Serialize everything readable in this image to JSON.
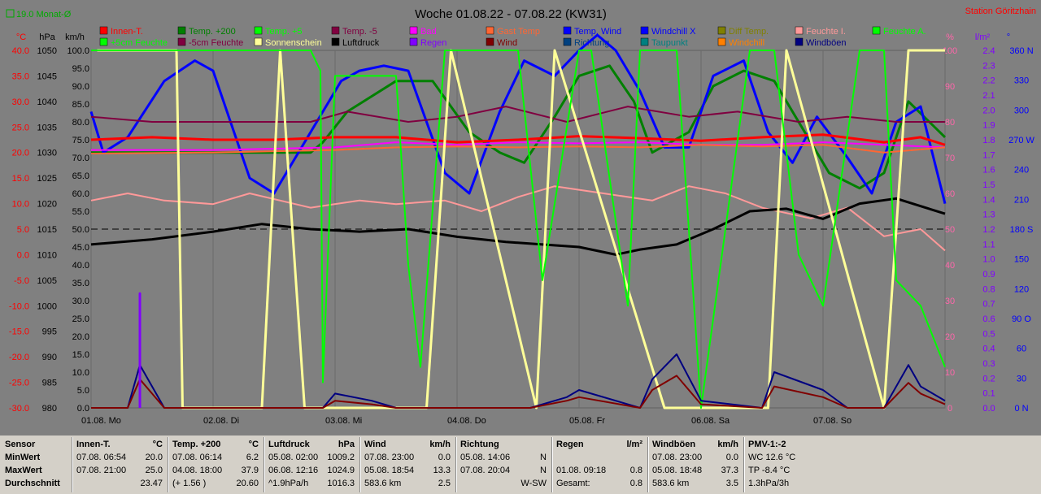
{
  "header": {
    "title": "Woche 01.08.22 - 07.08.22 (KW31)",
    "station": "Station Göritzhain",
    "month_avg": "19.0 Monat-Ø"
  },
  "units": {
    "temp": "°C",
    "hpa": "hPa",
    "kmh": "km/h",
    "pct": "%",
    "lm2": "l/m²",
    "deg": "°"
  },
  "legend": [
    {
      "label": "Innen-T.",
      "color": "#ff0000"
    },
    {
      "label": "Temp. +200",
      "color": "#008000"
    },
    {
      "label": "Temp. +5",
      "color": "#00ff00"
    },
    {
      "label": "Temp. -5",
      "color": "#800040"
    },
    {
      "label": "Bad",
      "color": "#ff00ff"
    },
    {
      "label": "Gast Temp",
      "color": "#ff6633"
    },
    {
      "label": "Temp. Wind",
      "color": "#0000ff"
    },
    {
      "label": "Windchill X",
      "color": "#0000ff"
    },
    {
      "label": "Diff Temp.",
      "color": "#808000"
    },
    {
      "label": "Feuchte I.",
      "color": "#ff9999"
    },
    {
      "label": "Feuchte A.",
      "color": "#00ff00"
    },
    {
      "label": "+5cm Feuchte",
      "color": "#00ff00"
    },
    {
      "label": "-5cm Feuchte",
      "color": "#800040"
    },
    {
      "label": "Sonnenschein",
      "color": "#ffff99"
    },
    {
      "label": "Luftdruck",
      "color": "#000000"
    },
    {
      "label": "Regen",
      "color": "#8000ff"
    },
    {
      "label": "Wind",
      "color": "#800000"
    },
    {
      "label": "Richtung",
      "color": "#004080"
    },
    {
      "label": "Taupunkt",
      "color": "#008080"
    },
    {
      "label": "Windchill",
      "color": "#ff8000"
    },
    {
      "label": "Windböen",
      "color": "#000080"
    }
  ],
  "chart_data": {
    "type": "line",
    "x_ticks": [
      "01.08. Mo",
      "02.08. Di",
      "03.08. Mi",
      "04.08. Do",
      "05.08. Fr",
      "06.08. Sa",
      "07.08. So"
    ],
    "axes": {
      "temp": {
        "ticks": [
          "40.0",
          "35.0",
          "30.0",
          "25.0",
          "20.0",
          "15.0",
          "10.0",
          "5.0",
          "0.0",
          "-5.0",
          "-10.0",
          "-15.0",
          "-20.0",
          "-25.0",
          "-30.0"
        ],
        "range": [
          -30,
          40
        ]
      },
      "pressure": {
        "ticks": [
          "1050",
          "1045",
          "1040",
          "1035",
          "1030",
          "1025",
          "1020",
          "1015",
          "1010",
          "1005",
          "1000",
          "995",
          "990",
          "985",
          "980"
        ],
        "range": [
          980,
          1050
        ]
      },
      "wind": {
        "ticks": [
          "100.0",
          "95.0",
          "90.0",
          "85.0",
          "80.0",
          "75.0",
          "70.0",
          "65.0",
          "60.0",
          "55.0",
          "50.0",
          "45.0",
          "40.0",
          "35.0",
          "30.0",
          "25.0",
          "20.0",
          "15.0",
          "10.0",
          "5.0",
          "0.0"
        ],
        "range": [
          0,
          100
        ]
      },
      "humidity": {
        "ticks": [
          "100",
          "90",
          "80",
          "70",
          "60",
          "50",
          "40",
          "30",
          "20",
          "10",
          "0"
        ],
        "range": [
          0,
          100
        ]
      },
      "rain": {
        "ticks": [
          "2.4",
          "2.3",
          "2.2",
          "2.1",
          "2.0",
          "1.9",
          "1.8",
          "1.7",
          "1.6",
          "1.5",
          "1.4",
          "1.3",
          "1.2",
          "1.1",
          "1.0",
          "0.9",
          "0.8",
          "0.7",
          "0.6",
          "0.5",
          "0.4",
          "0.3",
          "0.2",
          "0.1",
          "0.0"
        ],
        "range": [
          0,
          2.5
        ]
      },
      "direction": {
        "ticks": [
          "360 N",
          "330",
          "300",
          "270 W",
          "240",
          "210",
          "180 S",
          "150",
          "120",
          "90 O",
          "60",
          "30",
          "0 N"
        ],
        "range": [
          0,
          360
        ]
      }
    },
    "series": [
      {
        "name": "Temp. +200",
        "axis": "temp",
        "color": "#008000",
        "width": 3,
        "x": [
          0,
          0.4,
          1.8,
          1.9,
          2.1,
          2.5,
          2.8,
          3.1,
          3.35,
          3.55,
          3.8,
          4.0,
          4.25,
          4.45,
          4.6,
          4.9,
          5.1,
          5.35,
          5.6,
          5.85,
          6.05,
          6.3,
          6.5,
          6.7,
          7.0
        ],
        "y": [
          20,
          20,
          20,
          22,
          28,
          34,
          34,
          24,
          20,
          18,
          27,
          35,
          37,
          30,
          20,
          24,
          33,
          36,
          34,
          24,
          16,
          13,
          16,
          30,
          23
        ]
      },
      {
        "name": "Temp. Wind",
        "axis": "temp",
        "color": "#0000ff",
        "width": 3,
        "x": [
          0,
          0.1,
          0.3,
          0.6,
          0.85,
          1.0,
          1.3,
          1.5,
          1.9,
          2.05,
          2.2,
          2.4,
          2.6,
          2.9,
          3.1,
          3.35,
          3.55,
          3.8,
          4.0,
          4.15,
          4.3,
          4.5,
          4.7,
          4.9,
          5.1,
          5.35,
          5.55,
          5.75,
          5.95,
          6.2,
          6.4,
          6.6,
          6.8,
          7.0
        ],
        "y": [
          28,
          20,
          23,
          34,
          38,
          36,
          15,
          12,
          28,
          34,
          36,
          37,
          36,
          16,
          12,
          28,
          38,
          35,
          40,
          43,
          40,
          32,
          21,
          21,
          35,
          38,
          24,
          18,
          27,
          19,
          12,
          26,
          29,
          10
        ]
      },
      {
        "name": "Innen-T.",
        "axis": "temp",
        "color": "#ff0000",
        "width": 3,
        "x": [
          0,
          0.5,
          1.0,
          1.5,
          2.0,
          2.5,
          3.0,
          3.5,
          4.0,
          4.5,
          5.0,
          5.5,
          6.0,
          6.5,
          6.8,
          7.0
        ],
        "y": [
          22.5,
          23,
          22.5,
          22.5,
          23,
          23,
          22,
          22.5,
          23.2,
          22.8,
          22.3,
          23,
          23.5,
          22,
          23,
          21.5
        ]
      },
      {
        "name": "Bad",
        "axis": "temp",
        "color": "#ff00ff",
        "width": 2,
        "x": [
          0,
          1,
          2,
          2.5,
          3,
          3.5,
          4,
          4.5,
          5,
          5.5,
          6,
          6.5,
          7
        ],
        "y": [
          20.5,
          20.5,
          21,
          22,
          21.5,
          22,
          21.8,
          22,
          21.5,
          21.5,
          22,
          21.5,
          21
        ]
      },
      {
        "name": "Gast Temp",
        "axis": "temp",
        "color": "#ff6633",
        "width": 2,
        "x": [
          0,
          1,
          2,
          2.5,
          3,
          3.5,
          4,
          4.5,
          5,
          5.5,
          6,
          6.5,
          7
        ],
        "y": [
          19.8,
          20,
          20.5,
          21,
          21.2,
          21,
          21.2,
          21,
          21.5,
          21.2,
          21.5,
          20,
          21
        ]
      },
      {
        "name": "Temp. -5",
        "axis": "temp",
        "color": "#800040",
        "width": 2,
        "x": [
          0,
          0.5,
          1.2,
          1.8,
          2.1,
          2.6,
          3.0,
          3.4,
          3.9,
          4.4,
          4.9,
          5.3,
          5.8,
          6.2,
          6.6,
          7.0
        ],
        "y": [
          27,
          26,
          26,
          26,
          28,
          26,
          27,
          29,
          26,
          29,
          27,
          28,
          26,
          27,
          26,
          26
        ]
      },
      {
        "name": "Feuchte I.",
        "axis": "humidity",
        "color": "#ff9999",
        "width": 2,
        "x": [
          0,
          0.3,
          0.6,
          1.0,
          1.3,
          1.8,
          2.2,
          2.5,
          2.9,
          3.2,
          3.5,
          3.8,
          4.2,
          4.6,
          4.9,
          5.2,
          5.5,
          5.9,
          6.2,
          6.5,
          6.8,
          7.0
        ],
        "y": [
          58,
          60,
          58,
          57,
          60,
          56,
          58,
          57,
          58,
          55,
          59,
          62,
          60,
          58,
          62,
          60,
          56,
          53,
          56,
          48,
          50,
          44
        ]
      },
      {
        "name": "Luftdruck",
        "axis": "pressure",
        "color": "#000000",
        "width": 3,
        "x": [
          0,
          0.5,
          1.0,
          1.4,
          1.8,
          2.2,
          2.6,
          3.0,
          3.4,
          3.7,
          4.0,
          4.3,
          4.5,
          4.8,
          5.1,
          5.4,
          5.7,
          6.0,
          6.3,
          6.6,
          7.0
        ],
        "y": [
          1012,
          1013,
          1014.5,
          1016,
          1015,
          1014.5,
          1015,
          1013.5,
          1012.5,
          1012,
          1011.5,
          1010,
          1011,
          1012,
          1015,
          1018.5,
          1019,
          1017,
          1020,
          1021,
          1018
        ]
      },
      {
        "name": "Sonnenschein",
        "axis": "humidity",
        "color": "#ffff99",
        "width": 3,
        "x": [
          0.05,
          0.7,
          0.75,
          1.4,
          1.55,
          1.75,
          2.75,
          2.95,
          3.65,
          3.8,
          4.7,
          5.55,
          5.7,
          6.5,
          6.7,
          7.0
        ],
        "y": [
          100,
          100,
          0,
          0,
          100,
          0,
          0,
          100,
          0,
          100,
          0,
          0,
          100,
          0,
          100,
          100
        ]
      },
      {
        "name": "Temp. +5",
        "axis": "temp",
        "color": "#00ff00",
        "width": 2,
        "x": [
          0,
          0.8,
          1.8,
          1.88,
          1.9,
          2.0,
          2.5,
          2.6,
          2.7,
          2.9,
          3.0,
          3.5,
          3.7,
          4.0,
          4.1,
          4.4,
          4.5,
          4.8,
          5.0,
          5.4,
          5.6,
          5.8,
          6.0,
          6.3,
          6.5,
          6.6,
          6.8,
          7.0
        ],
        "y": [
          40,
          40,
          40,
          36,
          -25,
          35,
          35,
          -2,
          -22,
          40,
          40,
          40,
          -5,
          40,
          40,
          -10,
          40,
          40,
          -30,
          40,
          40,
          0,
          -10,
          40,
          40,
          -5,
          -10,
          -22
        ]
      },
      {
        "name": "Windböen",
        "axis": "wind",
        "color": "#000080",
        "width": 2,
        "x": [
          0,
          0.3,
          0.4,
          0.5,
          0.6,
          1.0,
          1.5,
          1.9,
          2.0,
          2.3,
          2.5,
          3.0,
          3.6,
          3.9,
          4.0,
          4.5,
          4.6,
          4.8,
          5.0,
          5.5,
          5.6,
          6.0,
          6.2,
          6.5,
          6.7,
          6.8,
          7.0
        ],
        "y": [
          0,
          0,
          12,
          6,
          0,
          0,
          0,
          0,
          4,
          2,
          0,
          0,
          0,
          3,
          5,
          0,
          8,
          15,
          2,
          0,
          10,
          5,
          0,
          0,
          12,
          6,
          2
        ]
      },
      {
        "name": "Wind",
        "axis": "wind",
        "color": "#800000",
        "width": 2,
        "x": [
          0,
          0.3,
          0.4,
          0.5,
          0.6,
          1.0,
          1.5,
          1.9,
          2.0,
          2.3,
          2.5,
          3.0,
          3.6,
          3.9,
          4.0,
          4.5,
          4.6,
          4.8,
          5.0,
          5.5,
          5.6,
          6.0,
          6.2,
          6.5,
          6.7,
          6.8,
          7.0
        ],
        "y": [
          0,
          0,
          8,
          4,
          0,
          0,
          0,
          0,
          2,
          1,
          0,
          0,
          0,
          2,
          3,
          0,
          5,
          9,
          1,
          0,
          6,
          3,
          0,
          0,
          7,
          4,
          1
        ]
      },
      {
        "name": "Regen",
        "axis": "rain",
        "color": "#8000ff",
        "width": 3,
        "x": [
          0.4,
          0.4,
          0.4
        ],
        "y": [
          0,
          0.8,
          0
        ]
      }
    ]
  },
  "stats": {
    "rows": [
      "Sensor",
      "MinWert",
      "MaxWert",
      "Durchschnitt"
    ],
    "sections": [
      {
        "name": "Innen-T.",
        "unit": "°C",
        "min_time": "07.08.  06:54",
        "min": "20.0",
        "max_time": "07.08.  21:00",
        "max": "25.0",
        "avg_left": "",
        "avg": "23.47"
      },
      {
        "name": "Temp. +200",
        "unit": "°C",
        "min_time": "07.08.  06:14",
        "min": "6.2",
        "max_time": "04.08.  18:00",
        "max": "37.9",
        "avg_left": "(+ 1.56 )",
        "avg": "20.60"
      },
      {
        "name": "Luftdruck",
        "unit": "hPa",
        "min_time": "05.08.  02:00",
        "min": "1009.2",
        "max_time": "06.08.  12:16",
        "max": "1024.9",
        "avg_left": "^1.9hPa/h",
        "avg": "1016.3"
      },
      {
        "name": "Wind",
        "unit": "km/h",
        "min_time": "07.08.  23:00",
        "min": "0.0",
        "max_time": "05.08.  18:54",
        "max": "13.3",
        "avg_left": "583.6 km",
        "avg": "2.5"
      },
      {
        "name": "Richtung",
        "unit": "",
        "min_time": "05.08.  14:06",
        "min": "N",
        "max_time": "07.08.  20:04",
        "max": "N",
        "avg_left": "",
        "avg": "W-SW"
      },
      {
        "name": "Regen",
        "unit": "l/m²",
        "min_time": "",
        "min": "",
        "max_time": "01.08.  09:18",
        "max": "0.8",
        "avg_left": "Gesamt:",
        "avg": "0.8"
      },
      {
        "name": "Windböen",
        "unit": "km/h",
        "min_time": "07.08.  23:00",
        "min": "0.0",
        "max_time": "05.08.  18:48",
        "max": "37.3",
        "avg_left": "583.6 km",
        "avg": "3.5"
      },
      {
        "name": "PMV-1:-2",
        "unit": "",
        "min_time": "WC 12.6 °C",
        "min": "",
        "max_time": "TP -8.4 °C",
        "max": "",
        "avg_left": "1.3hPa/3h",
        "avg": ""
      }
    ]
  }
}
